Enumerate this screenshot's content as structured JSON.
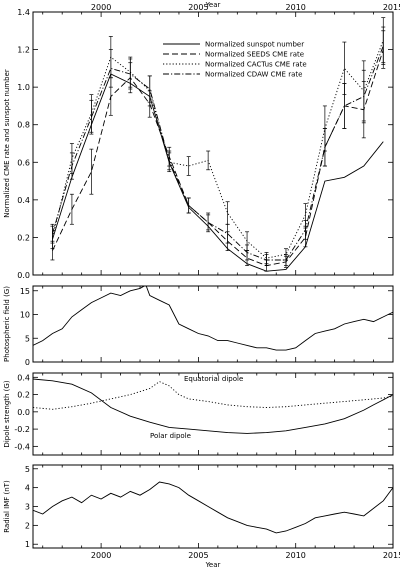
{
  "chart_data": [
    {
      "type": "line",
      "ylabel": "Normalized CME rate and sunspot number",
      "top_axis_label": "Year",
      "xlim": [
        1996.5,
        2015
      ],
      "ylim": [
        0.0,
        1.4
      ],
      "xticks": [
        2000,
        2005,
        2010,
        2015
      ],
      "yticks": [
        0.0,
        0.2,
        0.4,
        0.6,
        0.8,
        1.0,
        1.2,
        1.4
      ],
      "legend_position": "top-right",
      "series": [
        {
          "name": "Normalized sunspot number",
          "style": "solid",
          "x": [
            1997.5,
            1998.5,
            1999.5,
            2000.5,
            2001.5,
            2002.5,
            2003.5,
            2004.5,
            2005.5,
            2006.5,
            2007.5,
            2008.5,
            2009.5,
            2010.5,
            2011.5,
            2012.5,
            2013.5,
            2014.5
          ],
          "y": [
            0.19,
            0.52,
            0.8,
            1.07,
            1.02,
            0.95,
            0.6,
            0.36,
            0.26,
            0.14,
            0.06,
            0.02,
            0.03,
            0.15,
            0.5,
            0.52,
            0.58,
            0.71
          ]
        },
        {
          "name": "Normalized SEEDS CME rate",
          "style": "dashed",
          "x": [
            1997.5,
            1998.5,
            1999.5,
            2000.5,
            2001.5,
            2002.5,
            2003.5,
            2004.5,
            2005.5,
            2006.5,
            2007.5,
            2008.5,
            2009.5,
            2010.5,
            2011.5,
            2012.5,
            2013.5,
            2014.5
          ],
          "y": [
            0.13,
            0.35,
            0.55,
            0.95,
            1.05,
            0.91,
            0.63,
            0.37,
            0.28,
            0.18,
            0.09,
            0.05,
            0.07,
            0.2,
            0.68,
            0.9,
            0.88,
            1.2
          ],
          "err": [
            0.05,
            0.08,
            0.12,
            0.1,
            0.08,
            0.07,
            0.05,
            0.04,
            0.05,
            0.05,
            0.04,
            0.03,
            0.03,
            0.05,
            0.1,
            0.12,
            0.15,
            0.1
          ]
        },
        {
          "name": "Normalized CACTus CME rate",
          "style": "dotted",
          "x": [
            1997.5,
            1998.5,
            1999.5,
            2000.5,
            2001.5,
            2002.5,
            2003.5,
            2004.5,
            2005.5,
            2006.5,
            2007.5,
            2008.5,
            2009.5,
            2010.5,
            2011.5,
            2012.5,
            2013.5,
            2014.5
          ],
          "y": [
            0.2,
            0.62,
            0.86,
            1.16,
            1.08,
            0.98,
            0.6,
            0.58,
            0.61,
            0.33,
            0.18,
            0.09,
            0.11,
            0.32,
            0.78,
            1.1,
            0.98,
            1.25
          ],
          "err": [
            0.06,
            0.08,
            0.1,
            0.11,
            0.08,
            0.08,
            0.05,
            0.05,
            0.05,
            0.06,
            0.05,
            0.03,
            0.03,
            0.06,
            0.12,
            0.14,
            0.16,
            0.12
          ]
        },
        {
          "name": "Normalized CDAW CME rate",
          "style": "dashdot",
          "x": [
            1997.5,
            1998.5,
            1999.5,
            2000.5,
            2001.5,
            2002.5,
            2003.5,
            2004.5,
            2005.5,
            2006.5,
            2007.5,
            2008.5,
            2009.5,
            2010.5,
            2011.5,
            2012.5,
            2013.5,
            2014.5
          ],
          "y": [
            0.22,
            0.58,
            0.84,
            1.1,
            1.07,
            0.99,
            0.61,
            0.37,
            0.28,
            0.22,
            0.12,
            0.08,
            0.08,
            0.24,
            0.68,
            0.9,
            0.95,
            1.22
          ],
          "err": [
            0.05,
            0.07,
            0.09,
            0.1,
            0.08,
            0.07,
            0.05,
            0.04,
            0.04,
            0.05,
            0.04,
            0.03,
            0.03,
            0.05,
            0.1,
            0.12,
            0.14,
            0.1
          ]
        }
      ]
    },
    {
      "type": "line",
      "ylabel": "Photospheric field (G)",
      "xlim": [
        1996.5,
        2015
      ],
      "ylim": [
        0,
        16
      ],
      "yticks": [
        0,
        5,
        10,
        15
      ],
      "series": [
        {
          "name": "",
          "style": "solid",
          "x": [
            1996.5,
            1997.0,
            1997.5,
            1998.0,
            1998.5,
            1999.0,
            1999.5,
            2000.0,
            2000.5,
            2001.0,
            2001.5,
            2002.0,
            2002.3,
            2002.5,
            2003.0,
            2003.5,
            2004.0,
            2004.5,
            2005.0,
            2005.5,
            2006.0,
            2006.5,
            2007.0,
            2007.5,
            2008.0,
            2008.5,
            2009.0,
            2009.5,
            2010.0,
            2010.5,
            2011.0,
            2011.5,
            2012.0,
            2012.5,
            2013.0,
            2013.5,
            2014.0,
            2014.5,
            2015.0
          ],
          "y": [
            3.5,
            4.5,
            6.0,
            7.0,
            9.5,
            11.0,
            12.5,
            13.5,
            14.5,
            14.0,
            15.0,
            15.5,
            16.2,
            14.0,
            13.0,
            12.0,
            8.0,
            7.0,
            6.0,
            5.5,
            4.5,
            4.5,
            4.0,
            3.5,
            3.0,
            3.0,
            2.5,
            2.5,
            3.0,
            4.5,
            6.0,
            6.5,
            7.0,
            8.0,
            8.5,
            9.0,
            8.5,
            9.5,
            10.5
          ]
        }
      ]
    },
    {
      "type": "line",
      "ylabel": "Dipole strength (G)",
      "xlim": [
        1996.5,
        2015
      ],
      "ylim": [
        -0.5,
        0.45
      ],
      "yticks": [
        -0.4,
        -0.2,
        0.0,
        0.2,
        0.4
      ],
      "series": [
        {
          "name": "Equatorial dipole",
          "style": "dotted",
          "x": [
            1996.5,
            1997.5,
            1998.5,
            1999.5,
            2000.5,
            2001.5,
            2002.5,
            2003.0,
            2003.5,
            2004.0,
            2004.5,
            2005.5,
            2006.5,
            2007.5,
            2008.5,
            2009.5,
            2010.5,
            2011.5,
            2012.5,
            2013.5,
            2014.5,
            2015.0
          ],
          "y": [
            0.05,
            0.03,
            0.06,
            0.1,
            0.15,
            0.2,
            0.27,
            0.35,
            0.3,
            0.2,
            0.15,
            0.12,
            0.08,
            0.06,
            0.05,
            0.06,
            0.08,
            0.1,
            0.12,
            0.14,
            0.16,
            0.18
          ]
        },
        {
          "name": "Polar dipole",
          "style": "solid",
          "x": [
            1996.5,
            1997.5,
            1998.5,
            1999.5,
            2000.5,
            2001.5,
            2002.5,
            2003.5,
            2004.5,
            2005.5,
            2006.5,
            2007.5,
            2008.5,
            2009.5,
            2010.5,
            2011.5,
            2012.5,
            2013.5,
            2014.0,
            2014.5,
            2015.0
          ],
          "y": [
            0.38,
            0.36,
            0.32,
            0.22,
            0.05,
            -0.05,
            -0.12,
            -0.18,
            -0.2,
            -0.22,
            -0.24,
            -0.25,
            -0.24,
            -0.22,
            -0.18,
            -0.14,
            -0.08,
            0.02,
            0.08,
            0.14,
            0.2
          ]
        }
      ]
    },
    {
      "type": "line",
      "ylabel": "Radial IMF (nT)",
      "xlabel": "Year",
      "xlim": [
        1996.5,
        2015
      ],
      "ylim": [
        0.8,
        5.2
      ],
      "yticks": [
        1,
        2,
        3,
        4,
        5
      ],
      "xticks": [
        2000,
        2005,
        2010,
        2015
      ],
      "series": [
        {
          "name": "",
          "style": "solid",
          "x": [
            1996.5,
            1997.0,
            1997.5,
            1998.0,
            1998.5,
            1999.0,
            1999.5,
            2000.0,
            2000.5,
            2001.0,
            2001.5,
            2002.0,
            2002.5,
            2003.0,
            2003.5,
            2004.0,
            2004.5,
            2005.0,
            2005.5,
            2006.0,
            2006.5,
            2007.0,
            2007.5,
            2008.0,
            2008.5,
            2009.0,
            2009.5,
            2010.0,
            2010.5,
            2011.0,
            2011.5,
            2012.0,
            2012.5,
            2013.0,
            2013.5,
            2014.0,
            2014.5,
            2015.0
          ],
          "y": [
            2.8,
            2.6,
            3.0,
            3.3,
            3.5,
            3.2,
            3.6,
            3.4,
            3.7,
            3.5,
            3.8,
            3.6,
            3.9,
            4.3,
            4.2,
            4.0,
            3.6,
            3.3,
            3.0,
            2.7,
            2.4,
            2.2,
            2.0,
            1.9,
            1.8,
            1.6,
            1.7,
            1.9,
            2.1,
            2.4,
            2.5,
            2.6,
            2.7,
            2.6,
            2.5,
            2.9,
            3.3,
            4.0
          ]
        }
      ]
    }
  ],
  "annotations": {
    "equatorial": "Equatorial dipole",
    "polar": "Polar dipole"
  }
}
